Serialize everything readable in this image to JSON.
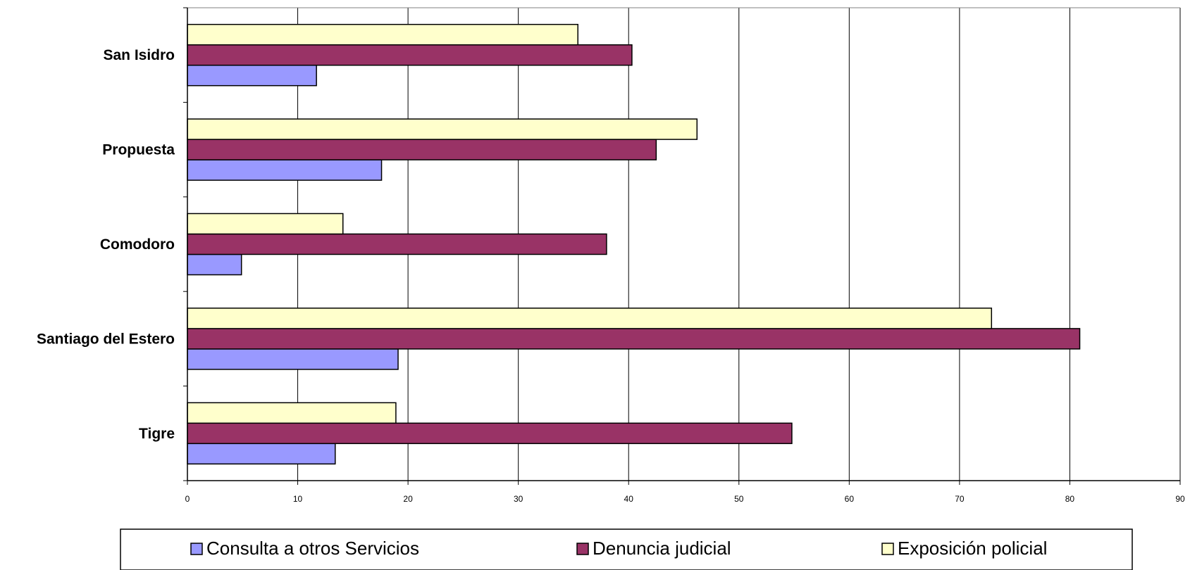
{
  "chart_data": {
    "type": "bar",
    "orientation": "horizontal",
    "categories": [
      "San Isidro",
      "Propuesta",
      "Comodoro",
      "Santiago del Estero",
      "Tigre"
    ],
    "series": [
      {
        "name": "Consulta a otros Servicios",
        "color": "#9999ff",
        "values": [
          11.7,
          17.6,
          4.9,
          19.1,
          13.4
        ]
      },
      {
        "name": "Denuncia judicial",
        "color": "#993366",
        "values": [
          40.3,
          42.5,
          38.0,
          80.9,
          54.8
        ]
      },
      {
        "name": "Exposición policial",
        "color": "#ffffcc",
        "values": [
          35.4,
          46.2,
          14.1,
          72.9,
          18.9
        ]
      }
    ],
    "xlim": [
      0,
      90
    ],
    "xticks": [
      0,
      10,
      20,
      30,
      40,
      50,
      60,
      70,
      80,
      90
    ],
    "grid": true,
    "legend_position": "bottom"
  }
}
